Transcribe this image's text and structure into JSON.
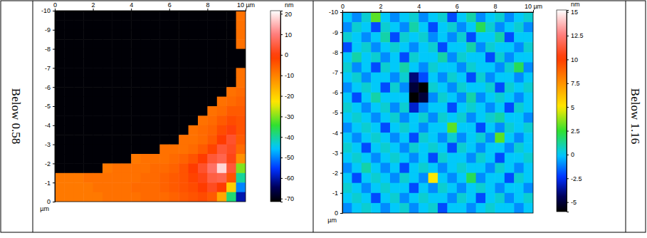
{
  "chart_data": [
    {
      "type": "heatmap",
      "side_label": "Below 0.58",
      "xlim": [
        0,
        10
      ],
      "xticks": [
        0,
        2,
        4,
        6,
        8,
        {
          "value": 10,
          "label": "10 µm"
        }
      ],
      "ylim": [
        0,
        -10
      ],
      "yticks": [
        -10,
        -9,
        -8,
        -7,
        -6,
        -5,
        -4,
        -3,
        -2,
        -1,
        0
      ],
      "ylabel": "µm",
      "color_range": [
        -71.5,
        21.5
      ],
      "color_ticks": [
        20,
        10,
        0,
        -10,
        -20,
        -30,
        -40,
        -50,
        -60,
        -70
      ],
      "color_title": "nm",
      "cells": [
        [
          -71,
          -71,
          -71,
          -71,
          -71,
          -71,
          -71,
          -71,
          -71,
          -71,
          -71,
          -71,
          -71,
          -71,
          -71,
          -71,
          -71,
          -71,
          -71,
          -8
        ],
        [
          -71,
          -71,
          -71,
          -71,
          -71,
          -71,
          -71,
          -71,
          -71,
          -71,
          -71,
          -71,
          -71,
          -71,
          -71,
          -71,
          -71,
          -71,
          -71,
          -8
        ],
        [
          -71,
          -71,
          -71,
          -71,
          -71,
          -71,
          -71,
          -71,
          -71,
          -71,
          -71,
          -71,
          -71,
          -71,
          -71,
          -71,
          -71,
          -71,
          -71,
          -8
        ],
        [
          -71,
          -71,
          -71,
          -71,
          -71,
          -71,
          -71,
          -71,
          -71,
          -71,
          -71,
          -71,
          -71,
          -71,
          -71,
          -71,
          -71,
          -71,
          -71,
          -8
        ],
        [
          -71,
          -71,
          -71,
          -71,
          -71,
          -71,
          -71,
          -71,
          -71,
          -71,
          -71,
          -71,
          -71,
          -71,
          -71,
          -71,
          -71,
          -71,
          -71,
          -71
        ],
        [
          -71,
          -71,
          -71,
          -71,
          -71,
          -71,
          -71,
          -71,
          -71,
          -71,
          -71,
          -71,
          -71,
          -71,
          -71,
          -71,
          -71,
          -71,
          -71,
          -71
        ],
        [
          -71,
          -71,
          -71,
          -71,
          -71,
          -71,
          -71,
          -71,
          -71,
          -71,
          -71,
          -71,
          -71,
          -71,
          -71,
          -71,
          -71,
          -71,
          -71,
          -8
        ],
        [
          -71,
          -71,
          -71,
          -71,
          -71,
          -71,
          -71,
          -71,
          -71,
          -71,
          -71,
          -71,
          -71,
          -71,
          -71,
          -71,
          -71,
          -71,
          -71,
          -8
        ],
        [
          -71,
          -71,
          -71,
          -71,
          -71,
          -71,
          -71,
          -71,
          -71,
          -71,
          -71,
          -71,
          -71,
          -71,
          -71,
          -71,
          -71,
          -71,
          -8,
          -7
        ],
        [
          -71,
          -71,
          -71,
          -71,
          -71,
          -71,
          -71,
          -71,
          -71,
          -71,
          -71,
          -71,
          -71,
          -71,
          -71,
          -71,
          -71,
          -8,
          -7,
          -6
        ],
        [
          -71,
          -71,
          -71,
          -71,
          -71,
          -71,
          -71,
          -71,
          -71,
          -71,
          -71,
          -71,
          -71,
          -71,
          -71,
          -71,
          -8,
          -7,
          -5,
          -5
        ],
        [
          -71,
          -71,
          -71,
          -71,
          -71,
          -71,
          -71,
          -71,
          -71,
          -71,
          -71,
          -71,
          -71,
          -71,
          -71,
          -8,
          -7,
          -5,
          -3,
          -4
        ],
        [
          -71,
          -71,
          -71,
          -71,
          -71,
          -71,
          -71,
          -71,
          -71,
          -71,
          -71,
          -71,
          -71,
          -71,
          -8,
          -7,
          -6,
          -3,
          0,
          -4
        ],
        [
          -71,
          -71,
          -71,
          -71,
          -71,
          -71,
          -71,
          -71,
          -71,
          -71,
          -71,
          -71,
          -71,
          -8,
          -8,
          -7,
          -5,
          -1,
          3,
          -5
        ],
        [
          -71,
          -71,
          -71,
          -71,
          -71,
          -71,
          -71,
          -71,
          -71,
          -71,
          -71,
          -8,
          -8,
          -8,
          -7,
          -5,
          -2,
          4,
          2,
          -7
        ],
        [
          -71,
          -71,
          -71,
          -71,
          -71,
          -71,
          -71,
          -71,
          -9,
          -8,
          -8,
          -8,
          -7,
          -6,
          -4,
          -1,
          4,
          6,
          1,
          -12
        ],
        [
          -71,
          -71,
          -71,
          -71,
          -71,
          -9,
          -8,
          -8,
          -8,
          -8,
          -7,
          -7,
          -6,
          -4,
          -1,
          3,
          8,
          18,
          4,
          -30
        ],
        [
          -9,
          -9,
          -9,
          -8,
          -8,
          -8,
          -8,
          -8,
          -8,
          -7,
          -7,
          -6,
          -5,
          -4,
          -2,
          1,
          5,
          6,
          -4,
          -40
        ],
        [
          -9,
          -9,
          -9,
          -9,
          -8,
          -8,
          -8,
          -8,
          -7,
          -7,
          -7,
          -6,
          -5,
          -4,
          -3,
          -1,
          2,
          -1,
          -20,
          -50
        ],
        [
          -9,
          -9,
          -9,
          -9,
          -9,
          -8,
          -8,
          -8,
          -8,
          -7,
          -7,
          -7,
          -6,
          -5,
          -4,
          -3,
          -5,
          -15,
          -38,
          -60
        ]
      ]
    },
    {
      "type": "heatmap",
      "side_label": "Below 1.16",
      "xlim": [
        0,
        10
      ],
      "xticks": [
        0,
        2,
        4,
        6,
        8,
        {
          "value": 10,
          "label": "10 µm"
        }
      ],
      "ylim": [
        0,
        -10
      ],
      "yticks": [
        -10,
        -9,
        -8,
        -7,
        -6,
        -5,
        -4,
        -3,
        -2,
        -1,
        0
      ],
      "ylabel": "µm",
      "color_range": [
        -6,
        15.2
      ],
      "color_ticks": [
        15,
        12.5,
        10,
        7.5,
        5,
        2.5,
        0,
        -2.5,
        -5
      ],
      "color_title": "nm",
      "cells": [
        [
          0,
          -1,
          0.5,
          3,
          0,
          -1,
          0,
          0.5,
          -1,
          0,
          0.5,
          -2,
          0,
          1,
          -1,
          0,
          0.5,
          -1,
          0,
          0.5
        ],
        [
          -1,
          0.5,
          0,
          -2,
          0.5,
          0,
          -1,
          1,
          0,
          -2,
          0,
          0.5,
          -1,
          0,
          2,
          0.5,
          -1,
          0,
          0.5,
          -1
        ],
        [
          0.5,
          0,
          -1,
          0,
          1,
          -2,
          0.5,
          0,
          0.5,
          -1,
          0,
          -1,
          0.5,
          -2,
          0,
          0,
          1,
          -2,
          0,
          0
        ],
        [
          -2,
          0,
          0.5,
          -1,
          0,
          0.5,
          0,
          -1,
          0,
          0.5,
          -2,
          0,
          0,
          1,
          -1,
          0.5,
          0,
          0,
          -1,
          0.5
        ],
        [
          0,
          1,
          0,
          0.5,
          -1,
          0,
          -2,
          0.5,
          0,
          0,
          1,
          -1,
          0.5,
          0,
          0,
          -2,
          0.5,
          -1,
          0,
          0
        ],
        [
          0.5,
          -1,
          0,
          -2,
          0.5,
          0,
          1,
          0,
          -1,
          0.5,
          0,
          0,
          -1,
          0.5,
          0,
          0,
          -1,
          0.5,
          2,
          -1
        ],
        [
          0,
          0.5,
          -1,
          0,
          0,
          -1,
          0.5,
          -4,
          -2,
          0,
          -1,
          0.5,
          0,
          -2,
          0.5,
          -1,
          0,
          0,
          -1,
          0
        ],
        [
          -1,
          0,
          0.5,
          0,
          -2,
          0.5,
          -1,
          -5,
          -6,
          0.5,
          0,
          -1,
          0.5,
          0,
          0,
          0.5,
          -2,
          0.5,
          0,
          0.5
        ],
        [
          0,
          -2,
          0,
          1,
          0,
          0,
          0,
          -6,
          -5,
          -1,
          0.5,
          0,
          -1,
          1,
          -1,
          0,
          0.5,
          0,
          -1,
          0
        ],
        [
          0.5,
          0,
          -1,
          0,
          0.5,
          -1,
          0.5,
          -3,
          -1,
          0,
          0,
          -2,
          0,
          0.5,
          0,
          -1,
          0,
          -2,
          0.5,
          0
        ],
        [
          0,
          0.5,
          0,
          -1,
          0,
          0.5,
          -1,
          0,
          0.5,
          -1,
          0.5,
          0,
          0.5,
          -1,
          0,
          0.5,
          1,
          0,
          0,
          -1
        ],
        [
          -1,
          0,
          0.5,
          0,
          -2,
          0,
          0.5,
          0,
          -1,
          0,
          0,
          3,
          0,
          0,
          -2,
          0,
          -1,
          0.5,
          0,
          0.5
        ],
        [
          0,
          -1,
          0,
          0.5,
          0,
          -1,
          0,
          -2,
          0.5,
          0,
          -1,
          0.5,
          -1,
          0,
          0.5,
          -1,
          3,
          0,
          -1,
          0
        ],
        [
          0.5,
          0,
          -2,
          0,
          0.5,
          0,
          -1,
          0.5,
          0,
          0.5,
          0,
          -2,
          0.5,
          0,
          -1,
          0,
          0,
          -1,
          0.5,
          0
        ],
        [
          0,
          0.5,
          0,
          -1,
          0,
          0.5,
          0,
          -1,
          0,
          -2,
          0.5,
          0,
          0,
          -1,
          0.5,
          0,
          -2,
          0,
          0,
          0.5
        ],
        [
          -1,
          0,
          1,
          0,
          -1,
          0,
          -2,
          0,
          0.5,
          0,
          -1,
          0,
          0.5,
          0,
          0,
          -1,
          0.5,
          0,
          -1,
          0
        ],
        [
          0,
          -2,
          0,
          0.5,
          0,
          -1,
          0.5,
          0,
          -1,
          5,
          0,
          -1,
          0,
          2,
          -1,
          0,
          0,
          -2,
          0.5,
          0
        ],
        [
          0.5,
          0,
          -1,
          0,
          0.5,
          0,
          0,
          -2,
          0,
          -1,
          0.5,
          0,
          -1,
          0,
          0.5,
          0,
          -1,
          0,
          0,
          -1
        ],
        [
          0,
          0.5,
          0,
          -2,
          0,
          0.5,
          -1,
          0,
          0.5,
          0,
          0,
          -1,
          0.5,
          0,
          -2,
          0,
          0.5,
          -1,
          0,
          0.5
        ],
        [
          -1,
          0,
          0.5,
          0,
          -1,
          0,
          0.5,
          -1,
          0,
          0.5,
          -2,
          0,
          0,
          -1,
          0,
          0.5,
          0,
          0,
          -1,
          0
        ]
      ]
    }
  ]
}
